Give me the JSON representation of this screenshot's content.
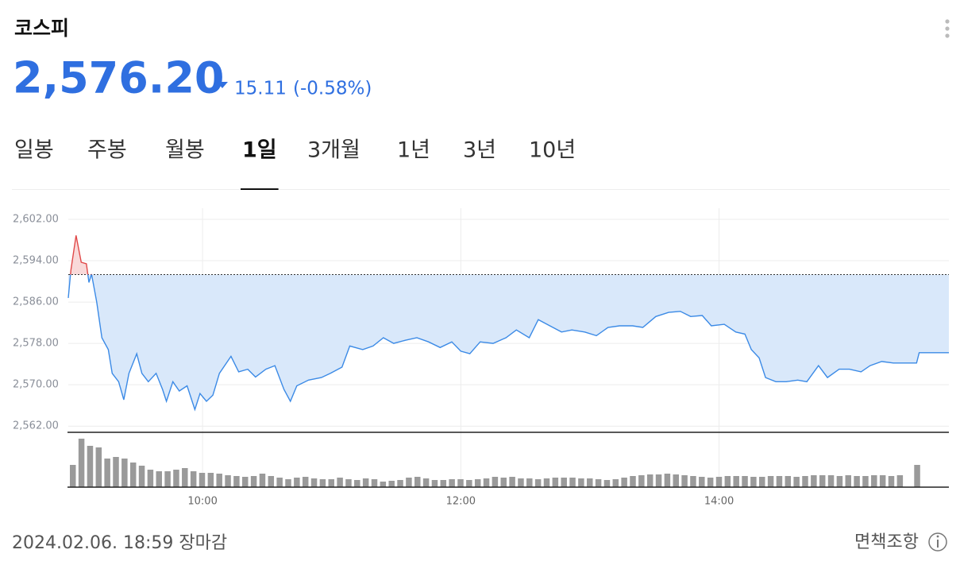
{
  "header": {
    "title": "코스피",
    "price": "2,576.20",
    "change": "15.11",
    "change_pct": "(-0.58%)"
  },
  "tabs": [
    "일봉",
    "주봉",
    "월봉",
    "1일",
    "3개월",
    "1년",
    "3년",
    "10년"
  ],
  "active_tab": 3,
  "chart_data": [
    {
      "type": "line",
      "color": "#3b8ae6",
      "up_color": "#e04848",
      "fill": "#d9e8fa",
      "up_fill": "#f9d9d9",
      "reference_line": 2591.31,
      "grid": true,
      "x": [
        8.96,
        8.98,
        9.02,
        9.06,
        9.1,
        9.12,
        9.14,
        9.18,
        9.22,
        9.27,
        9.3,
        9.35,
        9.39,
        9.43,
        9.49,
        9.53,
        9.58,
        9.64,
        9.69,
        9.72,
        9.77,
        9.82,
        9.88,
        9.94,
        9.98,
        10.03,
        10.08,
        10.13,
        10.22,
        10.28,
        10.35,
        10.41,
        10.49,
        10.56,
        10.63,
        10.68,
        10.73,
        10.82,
        10.92,
        10.99,
        11.08,
        11.14,
        11.24,
        11.32,
        11.4,
        11.48,
        11.57,
        11.66,
        11.75,
        11.84,
        11.93,
        12.0,
        12.07,
        12.15,
        12.25,
        12.35,
        12.43,
        12.53,
        12.6,
        12.69,
        12.78,
        12.86,
        12.96,
        13.05,
        13.14,
        13.23,
        13.33,
        13.41,
        13.51,
        13.61,
        13.7,
        13.78,
        13.87,
        13.94,
        14.04,
        14.13,
        14.2,
        14.25,
        14.31,
        14.36,
        14.44,
        14.52,
        14.61,
        14.68,
        14.77,
        14.84,
        14.93,
        15.01,
        15.1,
        15.17,
        15.26,
        15.35,
        15.44,
        15.53,
        15.55,
        15.78
      ],
      "values": [
        2586.8,
        2592.2,
        2598.9,
        2593.7,
        2593.4,
        2589.8,
        2591.4,
        2586.0,
        2579.1,
        2576.8,
        2572.2,
        2570.6,
        2567.1,
        2572.2,
        2576.0,
        2572.2,
        2570.6,
        2572.2,
        2569.1,
        2566.8,
        2570.6,
        2568.8,
        2569.8,
        2565.2,
        2568.3,
        2566.8,
        2568.0,
        2572.2,
        2575.5,
        2572.5,
        2573.0,
        2571.5,
        2573.0,
        2573.7,
        2569.1,
        2566.8,
        2569.8,
        2570.9,
        2571.4,
        2572.2,
        2573.4,
        2577.5,
        2576.8,
        2577.5,
        2579.1,
        2578.0,
        2578.6,
        2579.1,
        2578.3,
        2577.2,
        2578.3,
        2576.5,
        2576.0,
        2578.3,
        2578.0,
        2579.1,
        2580.6,
        2579.1,
        2582.6,
        2581.4,
        2580.2,
        2580.6,
        2580.2,
        2579.5,
        2581.1,
        2581.4,
        2581.4,
        2581.1,
        2583.2,
        2584.0,
        2584.2,
        2583.2,
        2583.4,
        2581.4,
        2581.7,
        2580.2,
        2579.8,
        2576.8,
        2575.2,
        2571.4,
        2570.6,
        2570.6,
        2570.9,
        2570.6,
        2573.7,
        2571.4,
        2573.0,
        2573.0,
        2572.5,
        2573.7,
        2574.5,
        2574.2,
        2574.2,
        2574.2,
        2576.2,
        2576.2
      ],
      "xlim": [
        8.96,
        15.78
      ],
      "xticks": [
        {
          "value": 10,
          "label": "10:00"
        },
        {
          "value": 12,
          "label": "12:00"
        },
        {
          "value": 14,
          "label": "14:00"
        }
      ],
      "ylim": [
        2560.8,
        2604
      ],
      "yticks": [
        {
          "value": 2602,
          "label": "2,602.00"
        },
        {
          "value": 2594,
          "label": "2,594.00"
        },
        {
          "value": 2586,
          "label": "2,586.00"
        },
        {
          "value": 2578,
          "label": "2,578.00"
        },
        {
          "value": 2570,
          "label": "2,570.00"
        },
        {
          "value": 2562,
          "label": "2,562.00"
        }
      ]
    },
    {
      "type": "bar",
      "color": "#9a9a9a",
      "values": [
        28,
        61,
        52,
        50,
        36,
        38,
        36,
        31,
        27,
        22,
        20,
        20,
        22,
        24,
        20,
        18,
        18,
        17,
        15,
        14,
        13,
        14,
        17,
        14,
        12,
        10,
        12,
        13,
        11,
        10,
        10,
        12,
        10,
        9,
        11,
        10,
        7,
        8,
        9,
        12,
        13,
        11,
        9,
        9,
        10,
        10,
        9,
        10,
        11,
        13,
        12,
        13,
        11,
        11,
        10,
        11,
        12,
        12,
        12,
        11,
        11,
        10,
        9,
        10,
        12,
        14,
        15,
        16,
        16,
        17,
        16,
        15,
        14,
        13,
        12,
        13,
        14,
        14,
        14,
        13,
        13,
        14,
        14,
        14,
        13,
        14,
        15,
        15,
        15,
        14,
        15,
        14,
        14,
        15,
        15,
        14,
        15,
        null,
        28
      ],
      "ylim": [
        0,
        66
      ]
    }
  ],
  "footer": {
    "timestamp": "2024.02.06. 18:59 장마감",
    "disclaimer": "면책조항"
  }
}
